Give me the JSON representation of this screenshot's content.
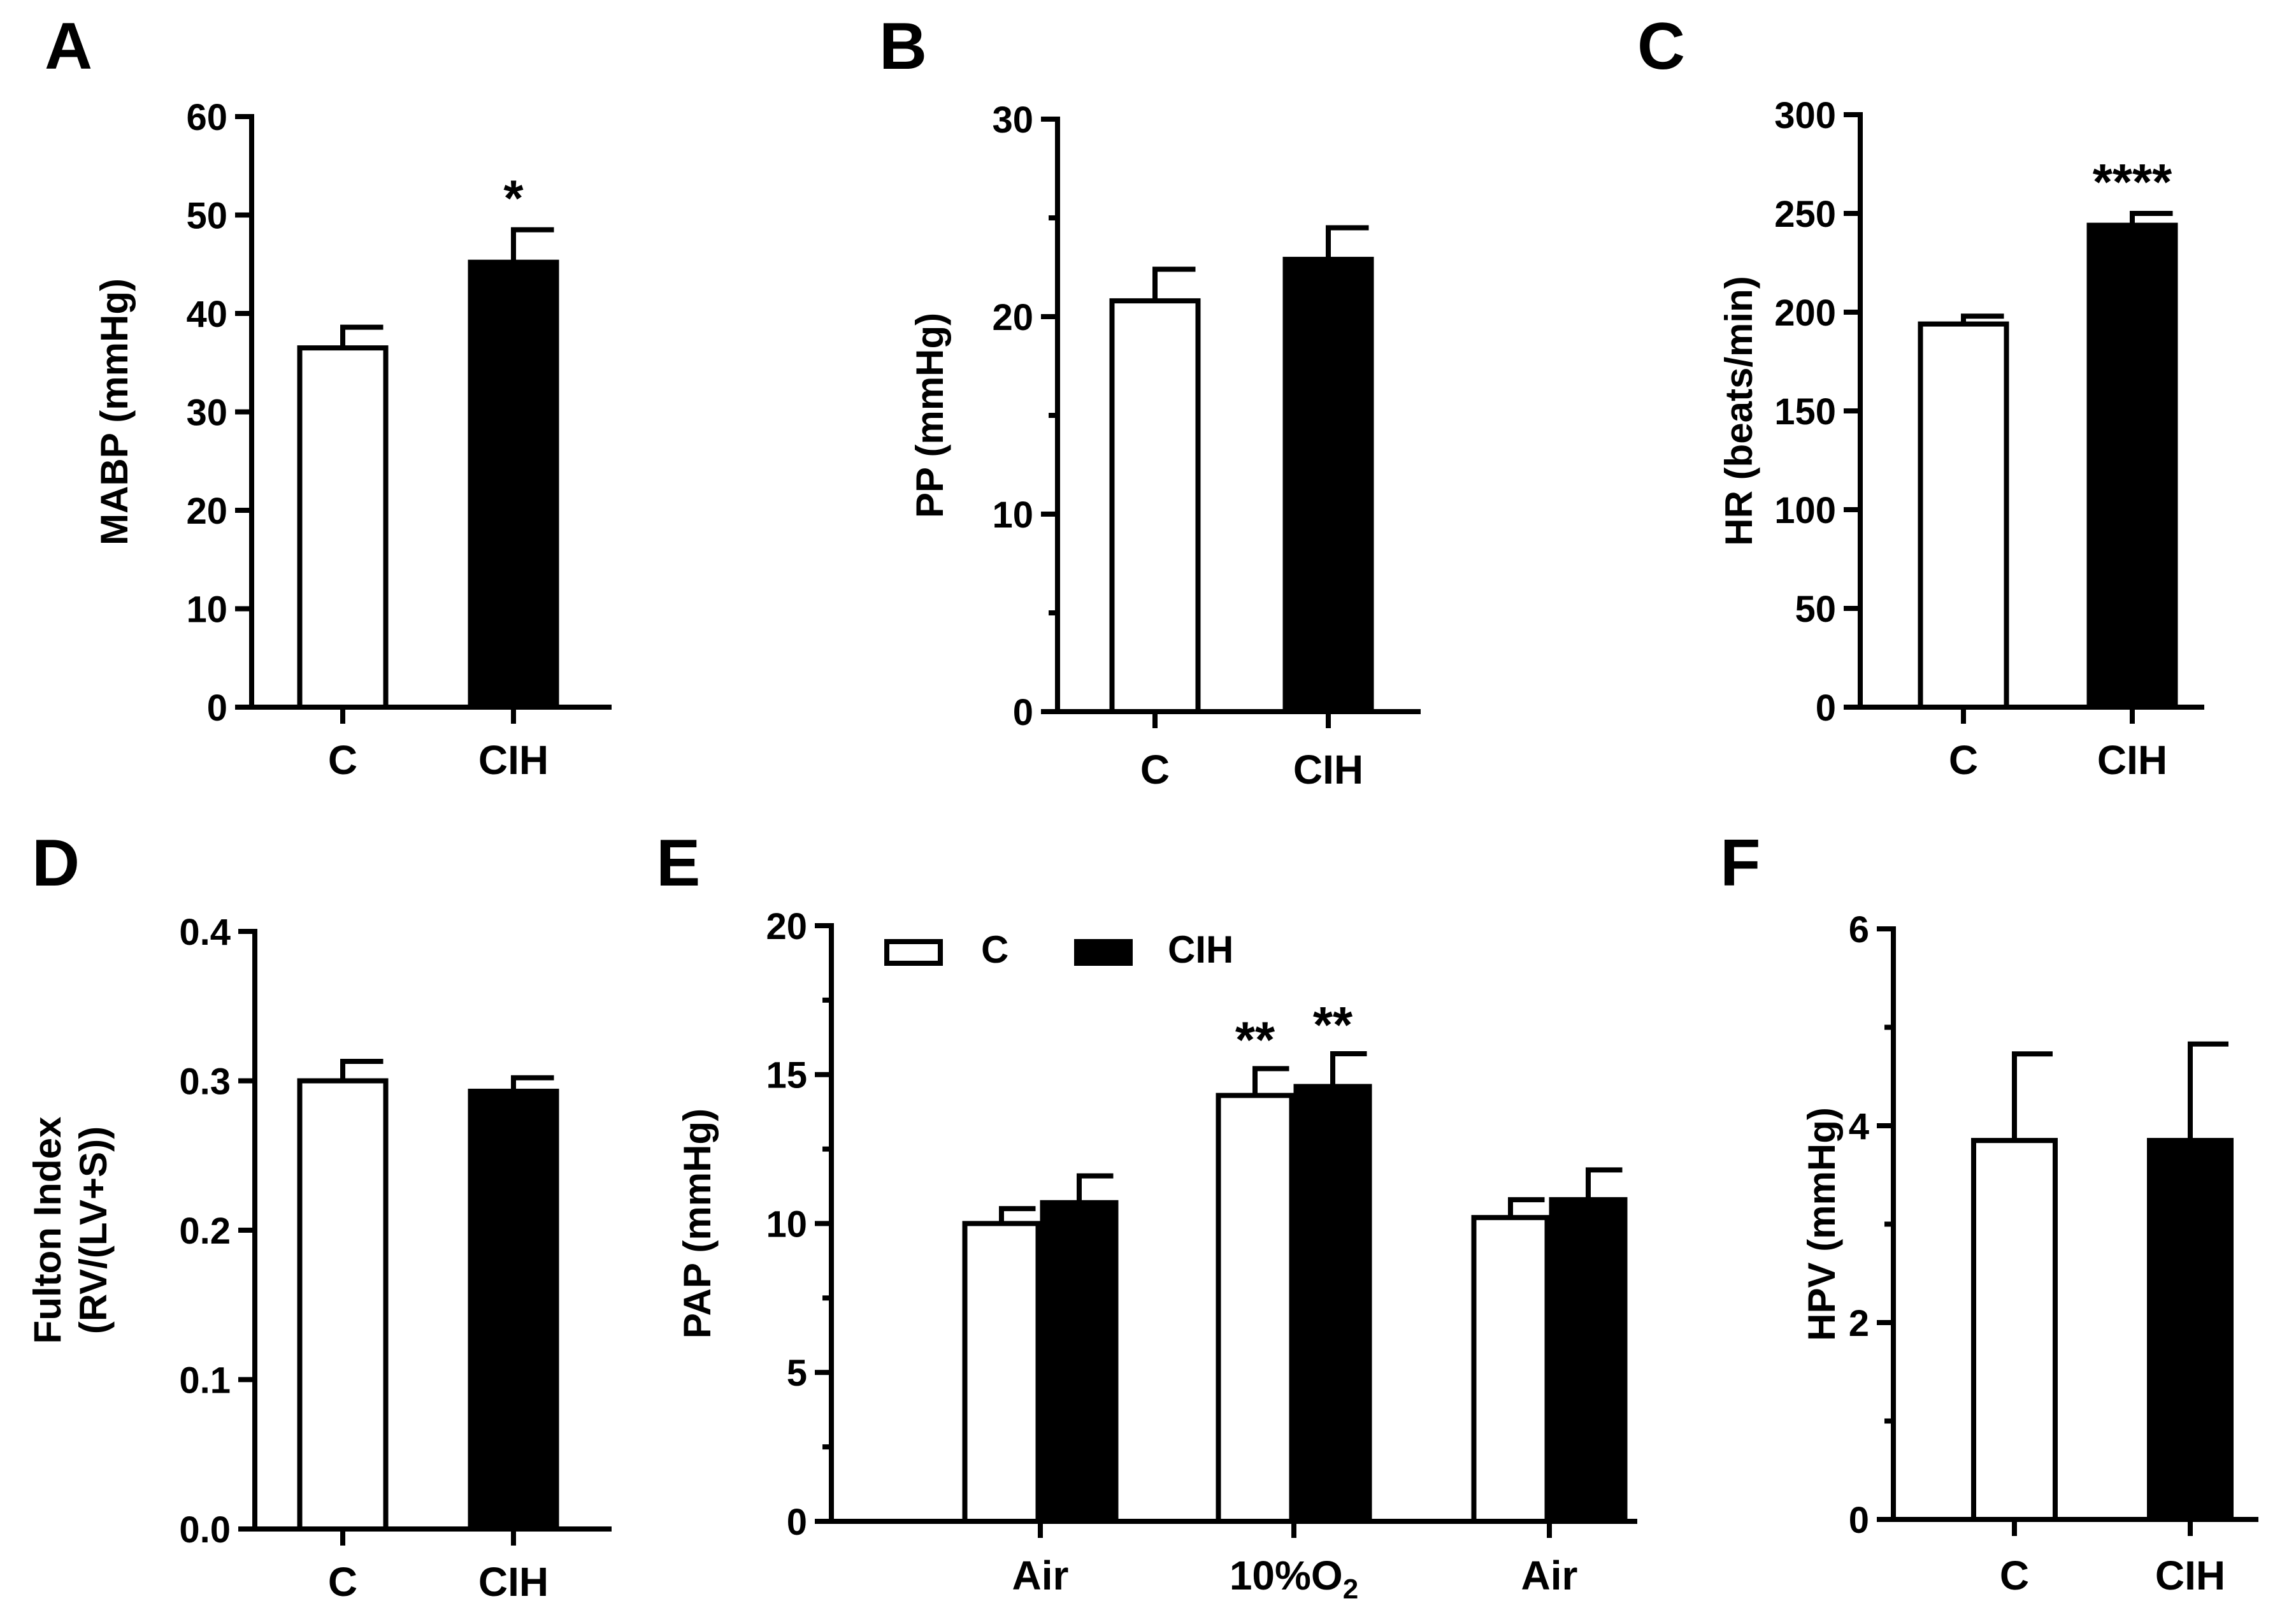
{
  "chart_data": [
    {
      "panel": "A",
      "type": "bar",
      "categories": [
        "C",
        "CIH"
      ],
      "values": [
        36.5,
        45.2
      ],
      "errors": [
        2.1,
        3.3
      ],
      "fills": [
        "#ffffff",
        "#000000"
      ],
      "annotations": [
        "",
        "*"
      ],
      "ylabel": "MABP (mmHg)",
      "ylim": [
        0,
        60
      ],
      "yticks": [
        0,
        10,
        20,
        30,
        40,
        50,
        60
      ],
      "ytick_labels": [
        "0",
        "10",
        "20",
        "30",
        "40",
        "50",
        "60"
      ],
      "minor_per_major": 0
    },
    {
      "panel": "B",
      "type": "bar",
      "categories": [
        "C",
        "CIH"
      ],
      "values": [
        20.8,
        22.9
      ],
      "errors": [
        1.6,
        1.6
      ],
      "fills": [
        "#ffffff",
        "#000000"
      ],
      "annotations": [
        "",
        ""
      ],
      "ylabel": "PP (mmHg)",
      "ylim": [
        0,
        30
      ],
      "yticks": [
        0,
        10,
        20,
        30
      ],
      "ytick_labels": [
        "0",
        "10",
        "20",
        "30"
      ],
      "minor_per_major": 1
    },
    {
      "panel": "C",
      "type": "bar",
      "categories": [
        "C",
        "CIH"
      ],
      "values": [
        194,
        244
      ],
      "errors": [
        4,
        6
      ],
      "fills": [
        "#ffffff",
        "#000000"
      ],
      "annotations": [
        "",
        "****"
      ],
      "ylabel": "HR (beats/min)",
      "ylim": [
        0,
        300
      ],
      "yticks": [
        0,
        50,
        100,
        150,
        200,
        250,
        300
      ],
      "ytick_labels": [
        "0",
        "50",
        "100",
        "150",
        "200",
        "250",
        "300"
      ],
      "minor_per_major": 0
    },
    {
      "panel": "D",
      "type": "bar",
      "categories": [
        "C",
        "CIH"
      ],
      "values": [
        0.3,
        0.293
      ],
      "errors": [
        0.013,
        0.009
      ],
      "fills": [
        "#ffffff",
        "#000000"
      ],
      "annotations": [
        "",
        ""
      ],
      "ylabel": [
        "Fulton Index",
        "(RV/(LV+S))"
      ],
      "ylim": [
        0,
        0.4
      ],
      "yticks": [
        0,
        0.1,
        0.2,
        0.3,
        0.4
      ],
      "ytick_labels": [
        "0.0",
        "0.1",
        "0.2",
        "0.3",
        "0.4"
      ],
      "minor_per_major": 0
    },
    {
      "panel": "E",
      "type": "bar",
      "categories": [
        "Air",
        "10%O2",
        "Air"
      ],
      "category_labels": [
        {
          "main": "Air",
          "sub": ""
        },
        {
          "main": "10%O",
          "sub": "2"
        },
        {
          "main": "Air",
          "sub": ""
        }
      ],
      "series": [
        {
          "name": "C",
          "fill": "#ffffff",
          "values": [
            10.0,
            14.3,
            10.2
          ],
          "errors": [
            0.5,
            0.9,
            0.6
          ],
          "annotations": [
            "",
            "**",
            ""
          ]
        },
        {
          "name": "CIH",
          "fill": "#000000",
          "values": [
            10.7,
            14.6,
            10.8
          ],
          "errors": [
            0.9,
            1.1,
            1.0
          ],
          "annotations": [
            "",
            "**",
            ""
          ]
        }
      ],
      "ylabel": "PAP (mmHg)",
      "ylim": [
        0,
        20
      ],
      "yticks": [
        0,
        5,
        10,
        15,
        20
      ],
      "ytick_labels": [
        "0",
        "5",
        "10",
        "15",
        "20"
      ],
      "minor_per_major": 1,
      "legend": {
        "position": "top",
        "entries": [
          "C",
          "CIH"
        ]
      }
    },
    {
      "panel": "F",
      "type": "bar",
      "categories": [
        "C",
        "CIH"
      ],
      "values": [
        3.85,
        3.85
      ],
      "errors": [
        0.88,
        0.98
      ],
      "fills": [
        "#ffffff",
        "#000000"
      ],
      "annotations": [
        "",
        ""
      ],
      "ylabel": "HPV (mmHg)",
      "ylim": [
        0,
        6
      ],
      "yticks": [
        0,
        2,
        4,
        6
      ],
      "ytick_labels": [
        "0",
        "2",
        "4",
        "6"
      ],
      "minor_per_major": 1
    }
  ]
}
